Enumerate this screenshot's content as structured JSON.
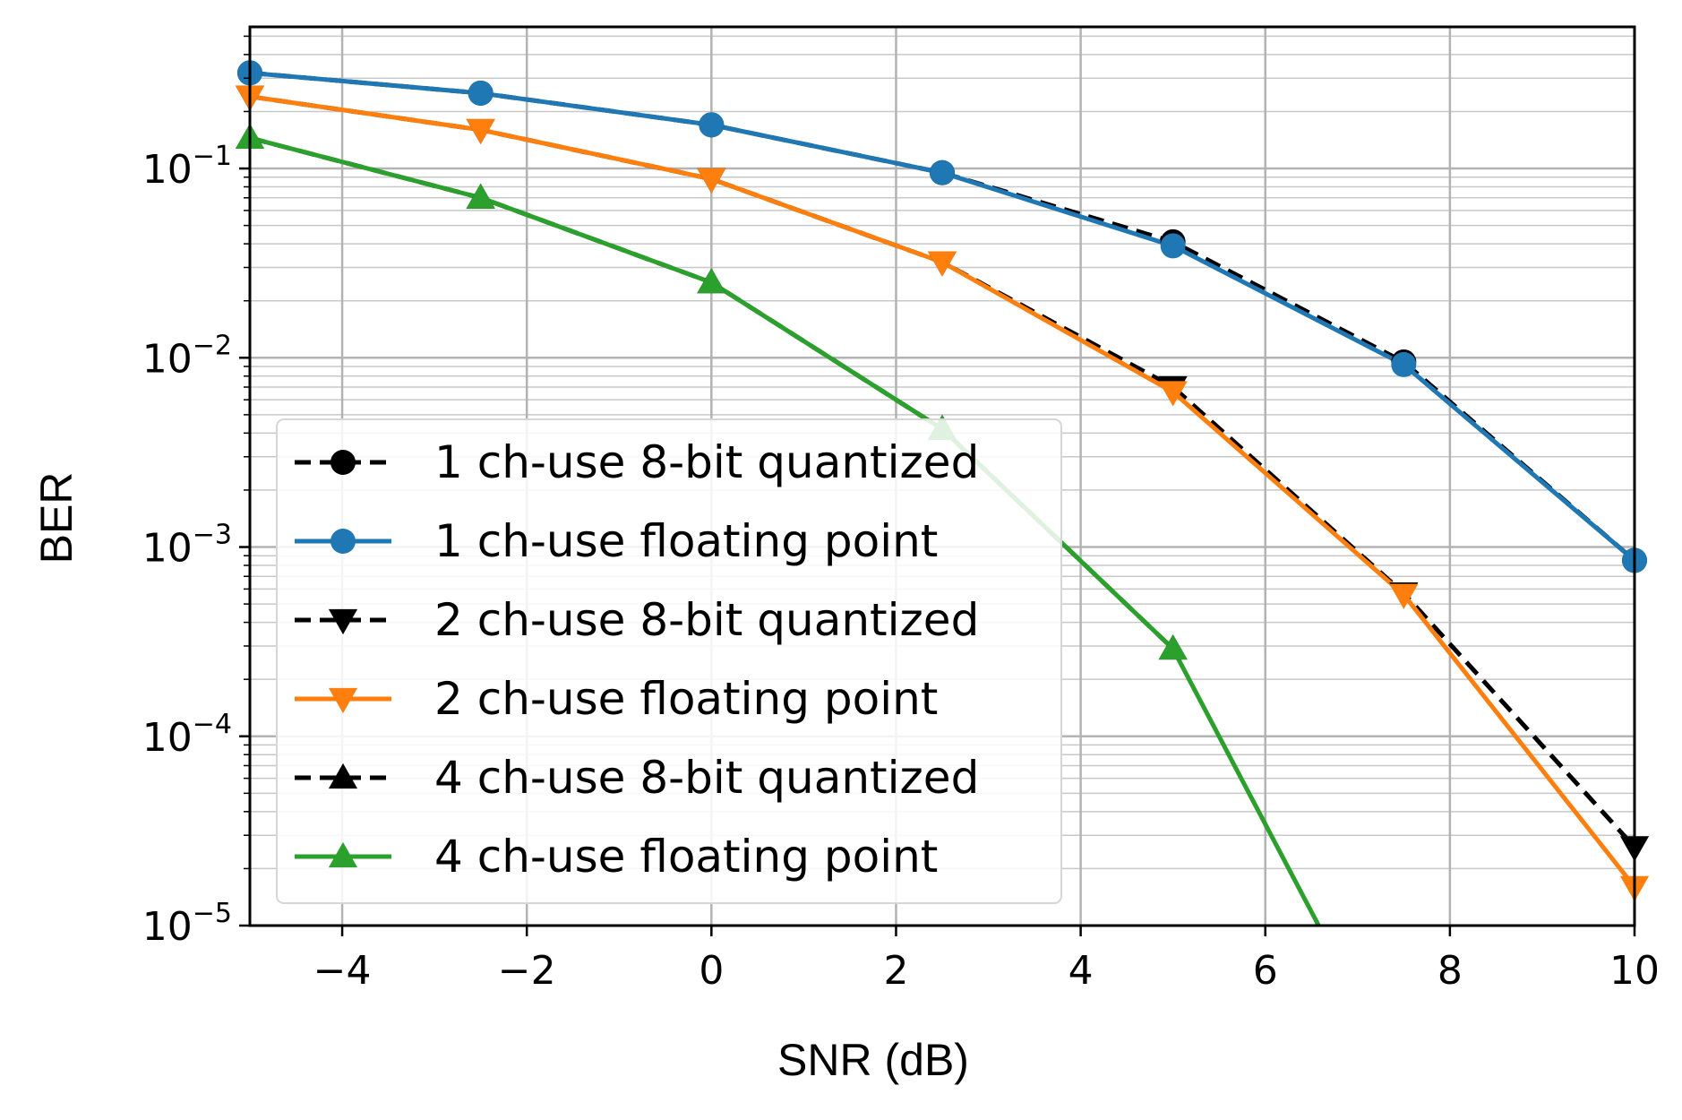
{
  "chart_data": {
    "type": "line",
    "xlabel": "SNR (dB)",
    "ylabel": "BER",
    "xlim": [
      -5,
      10
    ],
    "ylim": [
      1e-05,
      0.56
    ],
    "yscale": "log",
    "grid": "on (major and minor)",
    "legend_position": "lower-left",
    "x_ticks": [
      {
        "value": -4,
        "label": "−4"
      },
      {
        "value": -2,
        "label": "−2"
      },
      {
        "value": 0,
        "label": "0"
      },
      {
        "value": 2,
        "label": "2"
      },
      {
        "value": 4,
        "label": "4"
      },
      {
        "value": 6,
        "label": "6"
      },
      {
        "value": 8,
        "label": "8"
      },
      {
        "value": 10,
        "label": "10"
      }
    ],
    "y_ticks": [
      {
        "value": 0.1,
        "base": "10",
        "exp": "−1"
      },
      {
        "value": 0.01,
        "base": "10",
        "exp": "−2"
      },
      {
        "value": 0.001,
        "base": "10",
        "exp": "−3"
      },
      {
        "value": 0.0001,
        "base": "10",
        "exp": "−4"
      },
      {
        "value": 1e-05,
        "base": "10",
        "exp": "−5"
      }
    ],
    "x": [
      -5,
      -2.5,
      0,
      2.5,
      5,
      7.5,
      10
    ],
    "series": [
      {
        "name": "1 ch-use 8-bit quantized",
        "color": "#000000",
        "dashed": true,
        "marker": "circle",
        "values": [
          0.32,
          0.25,
          0.17,
          0.095,
          0.041,
          0.0095,
          0.00085
        ]
      },
      {
        "name": "1 ch-use floating point",
        "color": "#1f77b4",
        "dashed": false,
        "marker": "circle",
        "values": [
          0.32,
          0.25,
          0.17,
          0.095,
          0.039,
          0.0092,
          0.00085
        ]
      },
      {
        "name": "2 ch-use 8-bit quantized",
        "color": "#000000",
        "dashed": true,
        "marker": "triangle-down",
        "values": [
          0.24,
          0.16,
          0.088,
          0.032,
          0.007,
          0.00057,
          2.6e-05
        ]
      },
      {
        "name": "2 ch-use floating point",
        "color": "#ff7f0e",
        "dashed": false,
        "marker": "triangle-down",
        "values": [
          0.24,
          0.16,
          0.088,
          0.032,
          0.0066,
          0.00056,
          1.6e-05
        ]
      },
      {
        "name": "4 ch-use 8-bit quantized",
        "color": "#000000",
        "dashed": true,
        "marker": "triangle-up",
        "values": [
          0.145,
          0.07,
          0.025,
          0.0042,
          0.00029,
          null,
          null
        ]
      },
      {
        "name": "4 ch-use floating point",
        "color": "#2ca02c",
        "dashed": false,
        "marker": "triangle-up",
        "values": [
          0.145,
          0.07,
          0.025,
          0.0042,
          0.00029,
          1.4e-06,
          null
        ]
      }
    ]
  }
}
